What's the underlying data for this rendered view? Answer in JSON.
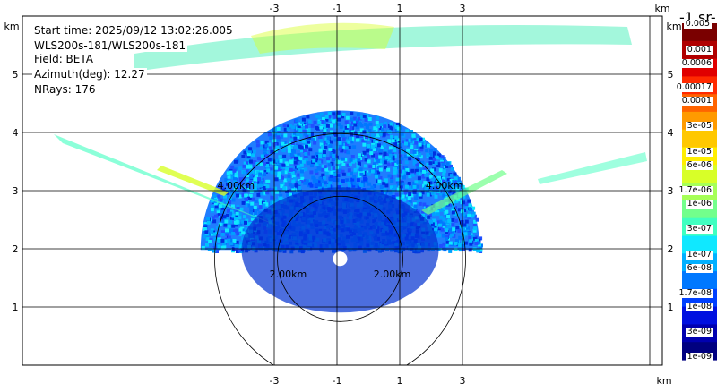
{
  "info": {
    "start_time": "Start time: 2025/09/12 13:02:26.005",
    "instrument": "WLS200s-181/WLS200s-181",
    "field": "Field: BETA",
    "azimuth": "Azimuth(deg): 12.27",
    "nrays": "NRays: 176"
  },
  "colorbar": {
    "title": "-1 sr-",
    "labels": [
      "0.005",
      "0.001",
      "0.0006",
      "0.00017",
      "0.0001",
      "3e-05",
      "1e-05",
      "6e-06",
      "1.7e-06",
      "1e-06",
      "3e-07",
      "1e-07",
      "6e-08",
      "1.7e-08",
      "1e-08",
      "3e-09",
      "1e-09"
    ],
    "colors": [
      "#7a0000",
      "#b00000",
      "#e00000",
      "#ff2a00",
      "#ff6400",
      "#ff9a00",
      "#ffc800",
      "#ffee00",
      "#d8ff28",
      "#a6ff58",
      "#72ff8c",
      "#40ffc0",
      "#10e8ff",
      "#00b0ff",
      "#0078ff",
      "#0040ff",
      "#0010e0",
      "#0000b0",
      "#000080"
    ]
  },
  "chart_data": {
    "type": "heatmap",
    "description_of_view": "RHI scan sector",
    "x_ticks": [
      "-3",
      "-1",
      "1",
      "3"
    ],
    "x_unit": "km",
    "y_ticks": [
      "1",
      "2",
      "3",
      "4",
      "5"
    ],
    "y_unit": "km",
    "xlim": [
      -5.2,
      5.7
    ],
    "ylim": [
      0,
      5.6
    ],
    "range_rings": [
      {
        "label": "2.00km",
        "radius_km": 2.0
      },
      {
        "label": "4.00km",
        "radius_km": 4.0
      }
    ],
    "field": "BETA",
    "scale": "log",
    "value_range": [
      1e-09,
      0.005
    ],
    "origin_km": [
      -0.9,
      1.98
    ],
    "max_range_km": 4.45
  }
}
